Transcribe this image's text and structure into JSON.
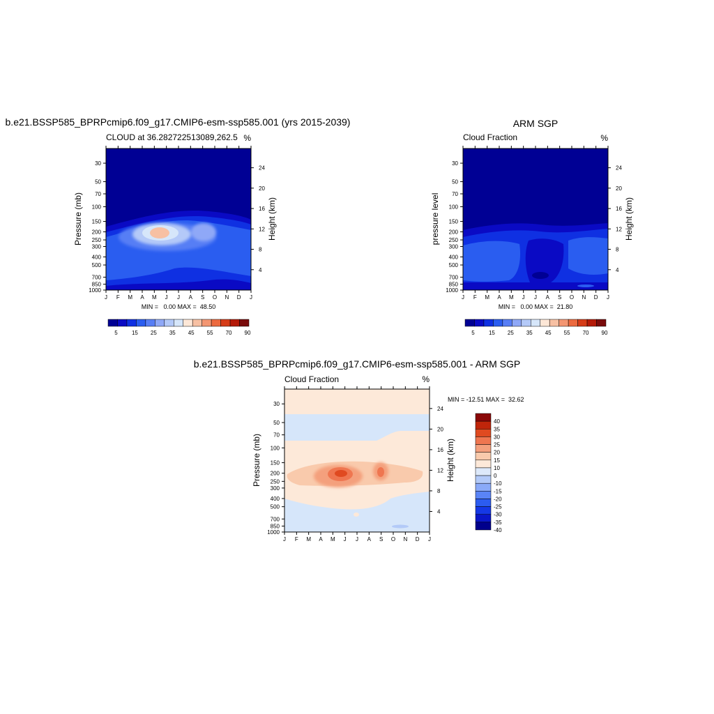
{
  "figure": {
    "panel_a_title": "b.e21.BSSP585_BPRPcmip6.f09_g17.CMIP6-esm-ssp585.001 (yrs 2015-2039)",
    "panel_b_title": "ARM SGP",
    "panel_c_title": "b.e21.BSSP585_BPRPcmip6.f09_g17.CMIP6-esm-ssp585.001 - ARM SGP"
  },
  "chart_data": [
    {
      "type": "heatmap",
      "title": "b.e21.BSSP585_BPRPcmip6.f09_g17.CMIP6-esm-ssp585.001 (yrs 2015-2039)",
      "subtitle": "CLOUD at 36.282722513089,262.5",
      "units": "%",
      "xlabel": "",
      "ylabel": "Pressure (mb)",
      "ylabel_right": "Height (km)",
      "x_ticks": [
        "J",
        "F",
        "M",
        "A",
        "M",
        "J",
        "J",
        "A",
        "S",
        "O",
        "N",
        "D",
        "J"
      ],
      "y_ticks": [
        30,
        50,
        70,
        100,
        150,
        200,
        250,
        300,
        400,
        500,
        700,
        850,
        1000
      ],
      "y_scale": "log",
      "height_ticks": [
        4,
        8,
        12,
        16,
        20,
        24
      ],
      "min_max_text": "MIN =   0.00 MAX =  48.50",
      "min": 0.0,
      "max": 48.5,
      "colorbar": {
        "orientation": "horizontal",
        "colors": [
          "#000094",
          "#0a0ac4",
          "#0f30e2",
          "#2a5df0",
          "#577ef5",
          "#8fa8f7",
          "#b4c9f8",
          "#d6e6fa",
          "#fde7d7",
          "#f7c0a3",
          "#f39672",
          "#ec6a3f",
          "#d63c18",
          "#b51a08",
          "#7a0b0b"
        ],
        "labels": [
          "5",
          "15",
          "25",
          "35",
          "45",
          "55",
          "70",
          "90"
        ]
      },
      "features": "Cloud maximum of about 45-48% near 200-250 mb in May-June; secondary maximum near 250 mb in September; values near 0-5% above 150 mb."
    },
    {
      "type": "heatmap",
      "title": "ARM SGP",
      "subtitle": "Cloud Fraction",
      "units": "%",
      "xlabel": "",
      "ylabel": "pressure level",
      "ylabel_right": "Height (km)",
      "x_ticks": [
        "J",
        "F",
        "M",
        "A",
        "M",
        "J",
        "J",
        "A",
        "S",
        "O",
        "N",
        "D",
        "J"
      ],
      "y_ticks": [
        30,
        50,
        70,
        100,
        150,
        200,
        250,
        300,
        400,
        500,
        700,
        850,
        1000
      ],
      "y_scale": "log",
      "height_ticks": [
        4,
        8,
        12,
        16,
        20,
        24
      ],
      "min_max_text": "MIN =   0.00 MAX =  21.80",
      "min": 0.0,
      "max": 21.8,
      "colorbar": {
        "orientation": "horizontal",
        "colors": [
          "#000094",
          "#0a0ac4",
          "#0f30e2",
          "#2a5df0",
          "#577ef5",
          "#8fa8f7",
          "#b4c9f8",
          "#d6e6fa",
          "#fde7d7",
          "#f7c0a3",
          "#f39672",
          "#ec6a3f",
          "#d63c18",
          "#b51a08",
          "#7a0b0b"
        ],
        "labels": [
          "5",
          "15",
          "25",
          "35",
          "45",
          "55",
          "70",
          "90"
        ]
      },
      "features": "Low cloud fraction everywhere (under ~20%); blue patches between 200 and 850 mb, lowest in summer near 700 mb."
    },
    {
      "type": "heatmap",
      "title": "b.e21.BSSP585_BPRPcmip6.f09_g17.CMIP6-esm-ssp585.001 - ARM SGP",
      "subtitle": "Cloud Fraction",
      "units": "%",
      "xlabel": "",
      "ylabel": "Pressure (mb)",
      "ylabel_right": "Height (km)",
      "x_ticks": [
        "J",
        "F",
        "M",
        "A",
        "M",
        "J",
        "J",
        "A",
        "S",
        "O",
        "N",
        "D",
        "J"
      ],
      "y_ticks": [
        30,
        50,
        70,
        100,
        150,
        200,
        250,
        300,
        400,
        500,
        700,
        850,
        1000
      ],
      "y_scale": "log",
      "height_ticks": [
        4,
        8,
        12,
        16,
        20,
        24
      ],
      "min_max_text": "MIN = -12.51 MAX =  32.62",
      "min": -12.51,
      "max": 32.62,
      "colorbar": {
        "orientation": "vertical",
        "colors": [
          "#00008c",
          "#0a16c8",
          "#1538e6",
          "#2c5cf0",
          "#5a84f6",
          "#8aaaf8",
          "#b3caf8",
          "#dde9fa",
          "#fde9d9",
          "#f9caac",
          "#f4a07d",
          "#ef7650",
          "#e04a20",
          "#c0250a",
          "#8a0808"
        ],
        "labels": [
          "40",
          "35",
          "30",
          "25",
          "20",
          "15",
          "10",
          "0",
          "-10",
          "-15",
          "-20",
          "-25",
          "-30",
          "-35",
          "-40"
        ]
      },
      "features": "Positive bias of 10-30% between 150 and 400 mb, largest in May-June near 200-250 mb and in September; slight negative bias (0 to -10%) between 50 and 100 mb and below 500 mb."
    }
  ]
}
